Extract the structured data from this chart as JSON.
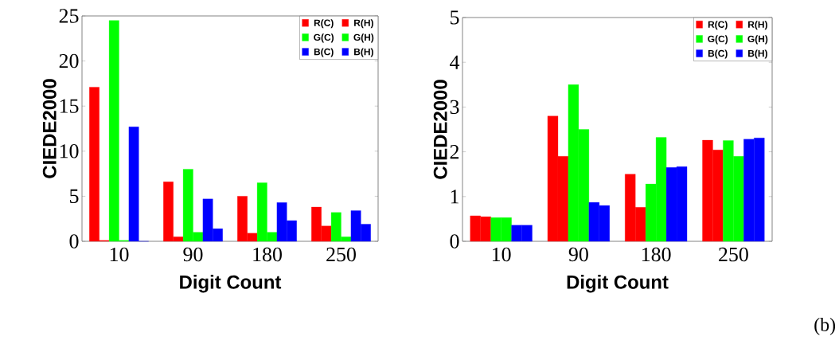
{
  "chart_data": [
    {
      "type": "bar",
      "xlabel": "Digit Count",
      "ylabel": "CIEDE2000",
      "categories": [
        "10",
        "90",
        "180",
        "250"
      ],
      "ylim": [
        0,
        25
      ],
      "yticks": [
        0,
        5,
        10,
        15,
        20,
        25
      ],
      "legend": "top right",
      "grid": false,
      "series": [
        {
          "name": "R(C)",
          "color": "#ff0000",
          "values": [
            17.1,
            6.6,
            5.0,
            3.8
          ]
        },
        {
          "name": "R(H)",
          "color": "#ff0000",
          "values": [
            0.1,
            0.5,
            0.9,
            1.7
          ]
        },
        {
          "name": "G(C)",
          "color": "#00ff00",
          "values": [
            24.5,
            8.0,
            6.5,
            3.2
          ]
        },
        {
          "name": "G(H)",
          "color": "#00ff00",
          "values": [
            0.1,
            1.0,
            1.0,
            0.5
          ]
        },
        {
          "name": "B(C)",
          "color": "#0000ff",
          "values": [
            12.7,
            4.7,
            4.3,
            3.4
          ]
        },
        {
          "name": "B(H)",
          "color": "#0000ff",
          "values": [
            0,
            1.4,
            2.3,
            1.9
          ]
        }
      ]
    },
    {
      "type": "bar",
      "xlabel": "Digit Count",
      "ylabel": "CIEDE2000",
      "categories": [
        "10",
        "90",
        "180",
        "250"
      ],
      "ylim": [
        0,
        5
      ],
      "yticks": [
        0,
        1,
        2,
        3,
        4,
        5
      ],
      "legend": "top right",
      "grid": false,
      "annotations": [
        "(b)"
      ],
      "series": [
        {
          "name": "R(C)",
          "color": "#ff0000",
          "values": [
            0.57,
            2.8,
            1.5,
            2.26
          ]
        },
        {
          "name": "R(H)",
          "color": "#ff0000",
          "values": [
            0.55,
            1.9,
            0.76,
            2.04
          ]
        },
        {
          "name": "G(C)",
          "color": "#00ff00",
          "values": [
            0.53,
            3.5,
            1.28,
            2.25
          ]
        },
        {
          "name": "G(H)",
          "color": "#00ff00",
          "values": [
            0.53,
            2.5,
            2.32,
            1.9
          ]
        },
        {
          "name": "B(C)",
          "color": "#0000ff",
          "values": [
            0.36,
            0.87,
            1.65,
            2.28
          ]
        },
        {
          "name": "B(H)",
          "color": "#0000ff",
          "values": [
            0.36,
            0.8,
            1.67,
            2.31
          ]
        }
      ]
    }
  ]
}
